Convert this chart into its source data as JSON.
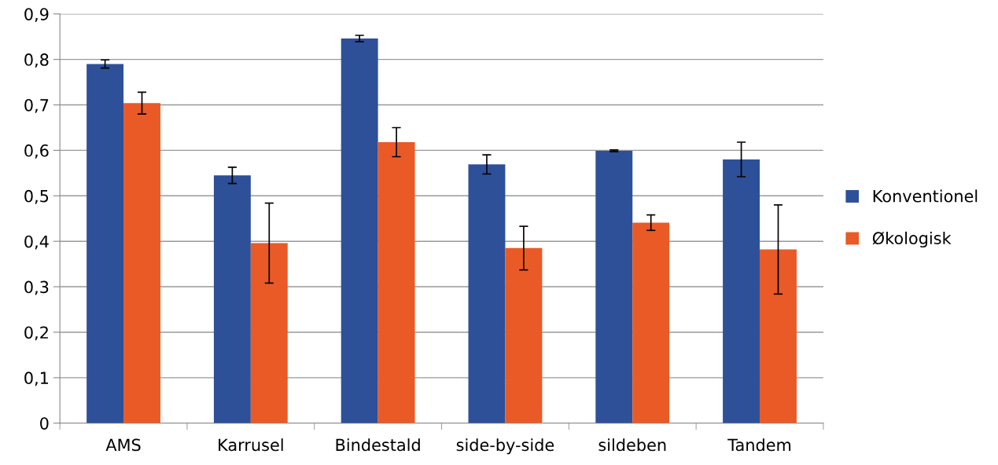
{
  "chart_data": {
    "type": "bar",
    "categories": [
      "AMS",
      "Karrusel",
      "Bindestald",
      "side-by-side",
      "sildeben",
      "Tandem"
    ],
    "series": [
      {
        "name": "Konventionel",
        "color": "#2e5099",
        "values": [
          0.79,
          0.545,
          0.846,
          0.569,
          0.599,
          0.58
        ],
        "errors": [
          0.009,
          0.018,
          0.007,
          0.021,
          0.002,
          0.038
        ]
      },
      {
        "name": "Økologisk",
        "color": "#e95a27",
        "values": [
          0.704,
          0.396,
          0.618,
          0.385,
          0.441,
          0.382
        ],
        "errors": [
          0.024,
          0.088,
          0.032,
          0.048,
          0.017,
          0.098
        ]
      }
    ],
    "ylim": [
      0,
      0.9
    ],
    "yticks": [
      {
        "value": 0,
        "label": "0"
      },
      {
        "value": 0.1,
        "label": "0,1"
      },
      {
        "value": 0.2,
        "label": "0,2"
      },
      {
        "value": 0.3,
        "label": "0,3"
      },
      {
        "value": 0.4,
        "label": "0,4"
      },
      {
        "value": 0.5,
        "label": "0,5"
      },
      {
        "value": 0.6,
        "label": "0,6"
      },
      {
        "value": 0.7,
        "label": "0,7"
      },
      {
        "value": 0.8,
        "label": "0,8"
      },
      {
        "value": 0.9,
        "label": "0,9"
      }
    ],
    "grid": "y",
    "legend": "right"
  }
}
